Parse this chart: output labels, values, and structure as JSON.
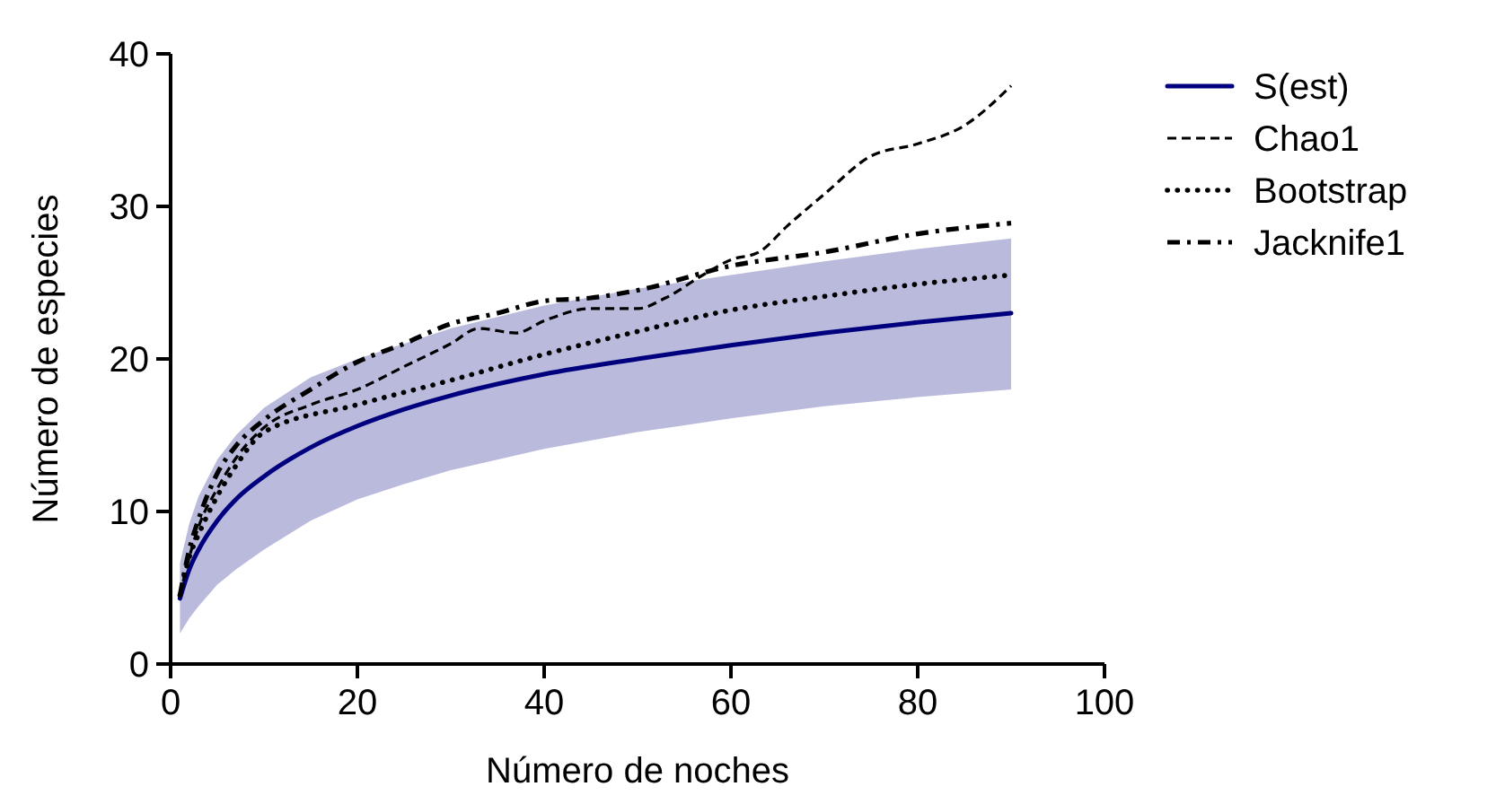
{
  "chart_data": {
    "type": "line",
    "xlabel": "Número de noches",
    "ylabel": "Número de especies",
    "xlim": [
      0,
      100
    ],
    "ylim": [
      0,
      40
    ],
    "xticks": [
      0,
      20,
      40,
      60,
      80,
      100
    ],
    "yticks": [
      0,
      10,
      20,
      30,
      40
    ],
    "legend": "right",
    "grid": false,
    "marker": "none",
    "series": [
      {
        "name": "S(est)",
        "color": "#00007f",
        "line_style": "solid",
        "x": [
          1,
          2,
          3,
          5,
          7,
          10,
          15,
          20,
          25,
          30,
          40,
          50,
          60,
          70,
          80,
          90
        ],
        "values": [
          4.3,
          6.2,
          7.5,
          9.4,
          10.8,
          12.3,
          14.2,
          15.6,
          16.7,
          17.6,
          19.0,
          20.0,
          20.9,
          21.7,
          22.4,
          23.0
        ],
        "lower": [
          2,
          3,
          3.8,
          5.2,
          6.2,
          7.5,
          9.4,
          10.8,
          11.8,
          12.7,
          14.1,
          15.2,
          16.1,
          16.9,
          17.5,
          18
        ],
        "upper": [
          6.6,
          9.2,
          11,
          13.4,
          15,
          16.8,
          18.8,
          20,
          21,
          22,
          23.5,
          24.6,
          25.5,
          26.4,
          27.2,
          27.9
        ]
      },
      {
        "name": "Chao1",
        "color": "#000000",
        "line_style": "dashed",
        "x": [
          1,
          2,
          3,
          5,
          7,
          10,
          15,
          20,
          25,
          30,
          33,
          37,
          40,
          45,
          50,
          53,
          57,
          60,
          63,
          66,
          70,
          75,
          80,
          85,
          90
        ],
        "values": [
          4.5,
          7,
          9,
          11.5,
          13.5,
          15.5,
          17,
          18,
          19.5,
          21,
          22,
          21.7,
          22.5,
          23.3,
          23.3,
          24,
          25.5,
          26.5,
          27,
          28.7,
          30.8,
          33.3,
          34.1,
          35.3,
          37.9
        ]
      },
      {
        "name": "Bootstrap",
        "color": "#000000",
        "line_style": "dotted",
        "x": [
          1,
          2,
          3,
          5,
          7,
          10,
          20,
          30,
          40,
          50,
          60,
          70,
          80,
          90
        ],
        "values": [
          4.5,
          7,
          8.5,
          11,
          13,
          15.2,
          17,
          18.6,
          20.3,
          21.8,
          23.2,
          24.1,
          24.9,
          25.5
        ]
      },
      {
        "name": "Jacknife1",
        "color": "#000000",
        "line_style": "dashdot",
        "x": [
          1,
          2,
          3,
          5,
          7,
          10,
          15,
          20,
          25,
          30,
          35,
          40,
          45,
          50,
          60,
          70,
          80,
          90
        ],
        "values": [
          4.5,
          7.5,
          9.5,
          12.5,
          14.3,
          16,
          18,
          19.8,
          21,
          22.3,
          23,
          23.8,
          24,
          24.5,
          26.1,
          27,
          28.2,
          28.9
        ]
      }
    ]
  }
}
